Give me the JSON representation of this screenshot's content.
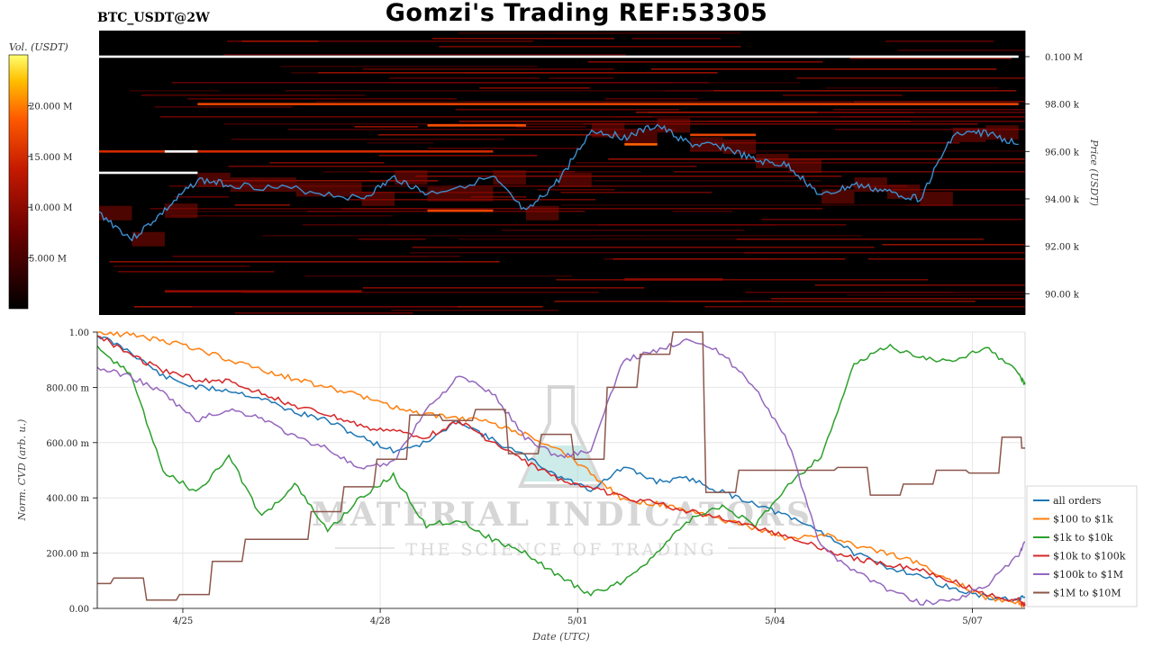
{
  "header": {
    "title": "Gomzi's Trading REF:53305",
    "ticker": "BTC_USDT@2W"
  },
  "colors": {
    "heat_low": "#000000",
    "heat_mid": "#b31200",
    "heat_high": "#ff4a00",
    "heat_max": "#ffff66",
    "price_line": "#3c8fd0",
    "grid": "#e6e6e6"
  },
  "watermark": {
    "brand": "MATERIAL INDICATORS",
    "tagline": "THE SCIENCE OF TRADING"
  },
  "chart_data": [
    {
      "type": "heatmap",
      "title": "BTC_USDT@2W",
      "ylabel": "Price (USDT)",
      "y_ticks": [
        "0.100 M",
        "98.00 k",
        "96.00 k",
        "94.00 k",
        "92.00 k",
        "90.00 k"
      ],
      "y_tick_values": [
        100000,
        98000,
        96000,
        94000,
        92000,
        90000
      ],
      "ylim": [
        89100,
        101100
      ],
      "colorbar": {
        "label": "Vol. (USDT)",
        "ticks": [
          "20.000 M",
          "15.000 M",
          "10.000 M",
          "5.000 M"
        ],
        "tick_values": [
          20000000,
          15000000,
          10000000,
          5000000
        ],
        "range": [
          0,
          25000000
        ]
      },
      "price_series": {
        "x": [
          "4/24",
          "4/24 12:00",
          "4/25",
          "4/25 12:00",
          "4/26",
          "4/27",
          "4/28",
          "4/28 12:00",
          "4/29",
          "4/30",
          "4/30 12:00",
          "5/01",
          "5/01 12:00",
          "5/02",
          "5/02 12:00",
          "5/03",
          "5/03 12:00",
          "5/04",
          "5/04 12:00",
          "5/05",
          "5/05 12:00",
          "5/06",
          "5/06 12:00",
          "5/07",
          "5/07 12:00",
          "5/08"
        ],
        "y": [
          93400,
          92300,
          93500,
          94800,
          94600,
          94400,
          94000,
          94900,
          94200,
          94900,
          93400,
          94800,
          96900,
          96600,
          97100,
          96300,
          96200,
          95600,
          95400,
          94100,
          94600,
          94300,
          94000,
          96700,
          96800,
          96300
        ]
      },
      "levels": [
        {
          "price": 100000,
          "from": "4/24",
          "to": "5/08",
          "volume": 25000000
        },
        {
          "price": 98000,
          "from": "4/25 12:00",
          "to": "5/08",
          "volume": 17000000
        },
        {
          "price": 97100,
          "from": "4/29",
          "to": "4/30 12:00",
          "volume": 18000000
        },
        {
          "price": 96000,
          "from": "4/24",
          "to": "4/30",
          "volume": 15000000
        },
        {
          "price": 96000,
          "from": "4/25",
          "to": "4/25 12:00",
          "volume": 25000000
        },
        {
          "price": 95100,
          "from": "4/24",
          "to": "4/25 12:00",
          "volume": 25000000
        },
        {
          "price": 96700,
          "from": "5/03",
          "to": "5/04",
          "volume": 17000000
        },
        {
          "price": 96300,
          "from": "5/02",
          "to": "5/02 12:00",
          "volume": 19000000
        },
        {
          "price": 93500,
          "from": "4/29",
          "to": "4/30",
          "volume": 17000000
        },
        {
          "price": 90600,
          "from": "5/02",
          "to": "5/03 12:00",
          "volume": 10000000
        },
        {
          "price": 90100,
          "from": "4/25",
          "to": "4/28",
          "volume": 10000000
        }
      ]
    },
    {
      "type": "line",
      "xlabel": "Date (UTC)",
      "ylabel": "Norm. CVD (arb. u.)",
      "x_ticks": [
        "4/25",
        "4/28",
        "5/01",
        "5/04",
        "5/07"
      ],
      "x_tick_days": [
        1.3,
        4.3,
        7.3,
        10.3,
        13.3
      ],
      "y_ticks": [
        "0.00",
        "200.00 m",
        "400.00 m",
        "600.00 m",
        "800.00 m",
        "1.00"
      ],
      "y_tick_values": [
        0,
        0.2,
        0.4,
        0.6,
        0.8,
        1.0
      ],
      "ylim": [
        0,
        1
      ],
      "xlim": [
        0,
        14.1
      ],
      "x": [
        0,
        0.5,
        1,
        1.5,
        2,
        2.5,
        3,
        3.5,
        4,
        4.5,
        5,
        5.5,
        6,
        6.5,
        7,
        7.5,
        8,
        8.5,
        9,
        9.5,
        10,
        10.5,
        11,
        11.5,
        12,
        12.5,
        13,
        13.5,
        14,
        14.1
      ],
      "series": [
        {
          "name": "all orders",
          "color": "#1f77b4",
          "values": [
            0.99,
            0.93,
            0.84,
            0.8,
            0.79,
            0.76,
            0.71,
            0.68,
            0.62,
            0.57,
            0.6,
            0.68,
            0.61,
            0.55,
            0.48,
            0.43,
            0.51,
            0.46,
            0.47,
            0.42,
            0.38,
            0.33,
            0.28,
            0.2,
            0.15,
            0.12,
            0.07,
            0.04,
            0.03,
            0.04
          ]
        },
        {
          "name": "$100 to $1k",
          "color": "#ff7f0e",
          "values": [
            1.0,
            0.99,
            0.97,
            0.94,
            0.9,
            0.86,
            0.83,
            0.8,
            0.77,
            0.73,
            0.7,
            0.69,
            0.67,
            0.63,
            0.58,
            0.49,
            0.39,
            0.38,
            0.35,
            0.32,
            0.29,
            0.25,
            0.27,
            0.23,
            0.2,
            0.16,
            0.1,
            0.04,
            0.02,
            0.01
          ]
        },
        {
          "name": "$1k to $10k",
          "color": "#2ca02c",
          "values": [
            0.94,
            0.85,
            0.5,
            0.42,
            0.55,
            0.33,
            0.45,
            0.28,
            0.4,
            0.48,
            0.3,
            0.32,
            0.25,
            0.2,
            0.12,
            0.05,
            0.1,
            0.2,
            0.32,
            0.37,
            0.3,
            0.45,
            0.55,
            0.88,
            0.95,
            0.91,
            0.89,
            0.95,
            0.85,
            0.81
          ]
        },
        {
          "name": "$10k to $100k",
          "color": "#d62728",
          "values": [
            0.99,
            0.92,
            0.86,
            0.83,
            0.82,
            0.78,
            0.73,
            0.7,
            0.66,
            0.64,
            0.62,
            0.68,
            0.6,
            0.53,
            0.47,
            0.44,
            0.4,
            0.38,
            0.35,
            0.33,
            0.29,
            0.26,
            0.22,
            0.18,
            0.16,
            0.14,
            0.1,
            0.05,
            0.03,
            0.01
          ]
        },
        {
          "name": "$100k to $1M",
          "color": "#9467bd",
          "values": [
            0.87,
            0.84,
            0.78,
            0.68,
            0.72,
            0.69,
            0.62,
            0.58,
            0.5,
            0.53,
            0.72,
            0.84,
            0.78,
            0.62,
            0.55,
            0.57,
            0.9,
            0.93,
            0.98,
            0.92,
            0.8,
            0.6,
            0.22,
            0.14,
            0.07,
            0.02,
            0.03,
            0.08,
            0.19,
            0.24
          ]
        },
        {
          "name": "$1M to $10M",
          "color": "#8c564b",
          "values": [
            0.09,
            0.11,
            0.03,
            0.05,
            0.17,
            0.25,
            0.25,
            0.35,
            0.44,
            0.54,
            0.7,
            0.68,
            0.72,
            0.56,
            0.63,
            0.54,
            0.8,
            0.92,
            1.0,
            0.42,
            0.5,
            0.5,
            0.5,
            0.51,
            0.41,
            0.45,
            0.5,
            0.49,
            0.62,
            0.58
          ]
        }
      ]
    }
  ]
}
